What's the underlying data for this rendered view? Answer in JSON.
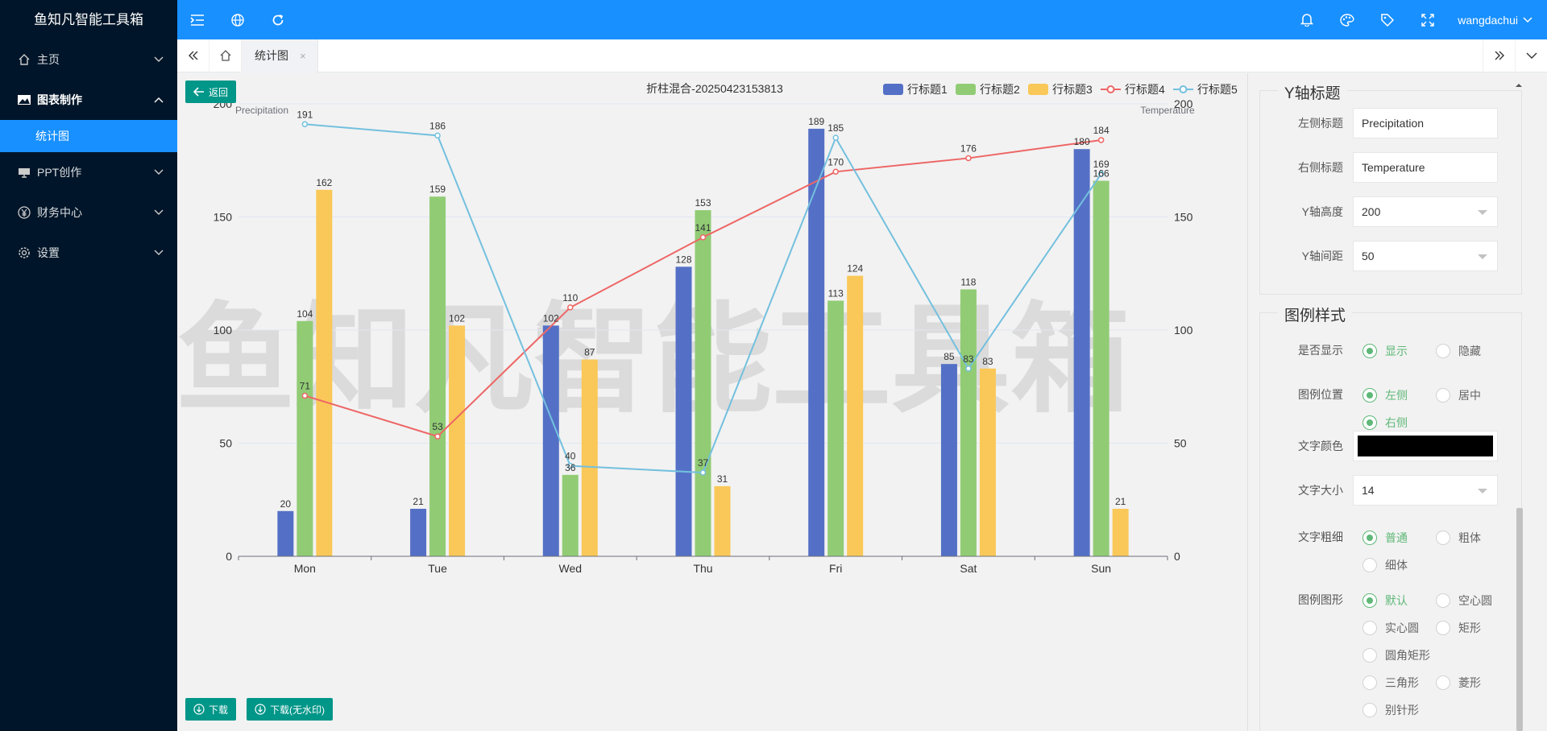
{
  "brand": "鱼知凡智能工具箱",
  "sidebar": {
    "items": [
      {
        "label": "主页",
        "icon": "home-icon"
      },
      {
        "label": "图表制作",
        "icon": "image-icon",
        "open": true
      },
      {
        "label": "PPT创作",
        "icon": "presentation-icon"
      },
      {
        "label": "财务中心",
        "icon": "yen-icon"
      },
      {
        "label": "设置",
        "icon": "gear-icon"
      }
    ],
    "sub_items": [
      {
        "label": "统计图"
      }
    ]
  },
  "header": {
    "user": "wangdachui",
    "icons": [
      "menu-fold-icon",
      "globe-icon",
      "refresh-icon",
      "bell-icon",
      "palette-icon",
      "tag-icon",
      "fullscreen-icon"
    ]
  },
  "tabs": [
    {
      "label": "统计图",
      "close": "×"
    }
  ],
  "buttons": {
    "back": "返回",
    "download": "下载",
    "download_no_wm": "下载(无水印)"
  },
  "watermark": "鱼知凡智能工具箱",
  "chart_data": {
    "type": "bar-line",
    "title": "折柱混合-20250423153813",
    "categories": [
      "Mon",
      "Tue",
      "Wed",
      "Thu",
      "Fri",
      "Sat",
      "Sun"
    ],
    "left_axis": {
      "name": "Precipitation",
      "min": 0,
      "max": 200,
      "interval": 50,
      "ticks": [
        "0",
        "50",
        "100",
        "150",
        "200"
      ]
    },
    "right_axis": {
      "name": "Temperature",
      "min": 0,
      "max": 200,
      "interval": 50,
      "ticks": [
        "0",
        "50",
        "100",
        "150",
        "200"
      ]
    },
    "legend_position": "top-right",
    "series": [
      {
        "name": "行标题1",
        "type": "bar",
        "color": "#5470c6",
        "values": [
          20,
          21,
          102,
          128,
          189,
          85,
          180
        ]
      },
      {
        "name": "行标题2",
        "type": "bar",
        "color": "#91cc75",
        "values": [
          104,
          159,
          36,
          153,
          113,
          118,
          166
        ]
      },
      {
        "name": "行标题3",
        "type": "bar",
        "color": "#fac858",
        "values": [
          162,
          102,
          87,
          31,
          124,
          83,
          21
        ]
      },
      {
        "name": "行标题4",
        "type": "line",
        "color": "#ee6666",
        "values": [
          71,
          53,
          110,
          141,
          170,
          176,
          184
        ]
      },
      {
        "name": "行标题5",
        "type": "line",
        "color": "#73c0de",
        "values": [
          191,
          186,
          40,
          37,
          185,
          83,
          169
        ]
      }
    ]
  },
  "panel": {
    "yaxis_title": "Y轴标题",
    "left_title_label": "左侧标题",
    "left_title_value": "Precipitation",
    "right_title_label": "右侧标题",
    "right_title_value": "Temperature",
    "yheight_label": "Y轴高度",
    "yheight_value": "200",
    "yinterval_label": "Y轴间距",
    "yinterval_value": "50",
    "legend_title": "图例样式",
    "show_label": "是否显示",
    "show_options": [
      "显示",
      "隐藏"
    ],
    "pos_label": "图例位置",
    "pos_options": [
      "左侧",
      "居中",
      "右侧"
    ],
    "color_label": "文字颜色",
    "color_value": "#000000",
    "size_label": "文字大小",
    "size_value": "14",
    "weight_label": "文字粗细",
    "weight_options": [
      "普通",
      "粗体",
      "细体"
    ],
    "shape_label": "图例图形",
    "shape_options": [
      "默认",
      "空心圆",
      "实心圆",
      "矩形",
      "圆角矩形",
      "三角形",
      "菱形",
      "别针形"
    ]
  }
}
